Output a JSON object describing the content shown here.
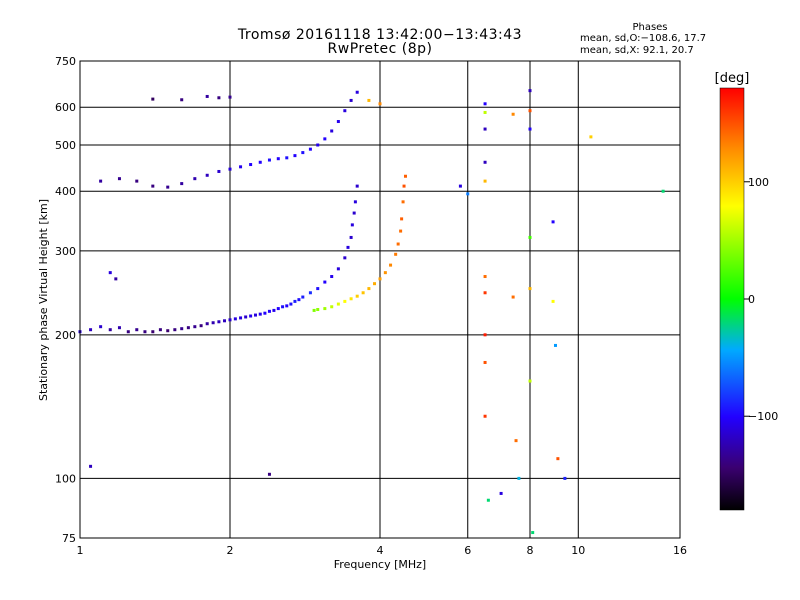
{
  "header": {
    "title_line1": "Tromsø 20161118 13:42:00−13:43:43",
    "title_line2": "RwPretec (8p)",
    "phases_title": "Phases",
    "phases_o": "mean, sd,O:−108.6, 17.7",
    "phases_x": "mean, sd,X:  92.1, 20.7"
  },
  "colorbar": {
    "unit": "[deg]",
    "ticks": [
      {
        "value": 100,
        "label": "100"
      },
      {
        "value": 0,
        "label": "0"
      },
      {
        "value": -100,
        "label": "−100"
      }
    ],
    "range": [
      -180,
      180
    ]
  },
  "chart_data": {
    "type": "scatter",
    "xlabel": "Frequency [MHz]",
    "ylabel": "Stationary phase Virtual Height [km]",
    "x_scale": "log",
    "y_scale": "log",
    "xlim": [
      1,
      16
    ],
    "ylim": [
      75,
      750
    ],
    "x_ticks": [
      {
        "value": 1,
        "label": "1"
      },
      {
        "value": 2,
        "label": "2"
      },
      {
        "value": 4,
        "label": "4"
      },
      {
        "value": 6,
        "label": "6"
      },
      {
        "value": 8,
        "label": "8"
      },
      {
        "value": 10,
        "label": "10"
      },
      {
        "value": 16,
        "label": "16"
      }
    ],
    "y_ticks": [
      {
        "value": 75,
        "label": "75"
      },
      {
        "value": 100,
        "label": "100"
      },
      {
        "value": 200,
        "label": "200"
      },
      {
        "value": 300,
        "label": "300"
      },
      {
        "value": 400,
        "label": "400"
      },
      {
        "value": 500,
        "label": "500"
      },
      {
        "value": 600,
        "label": "600"
      },
      {
        "value": 750,
        "label": "750"
      }
    ],
    "grid": true,
    "series": [
      {
        "trace": "o-mode F-layer",
        "points": [
          [
            1.0,
            203,
            -110
          ],
          [
            1.05,
            205,
            -120
          ],
          [
            1.1,
            208,
            -115
          ],
          [
            1.15,
            205,
            -130
          ],
          [
            1.2,
            207,
            -125
          ],
          [
            1.25,
            203,
            -140
          ],
          [
            1.3,
            205,
            -135
          ],
          [
            1.35,
            203,
            -140
          ],
          [
            1.4,
            203,
            -145
          ],
          [
            1.45,
            205,
            -140
          ],
          [
            1.5,
            204,
            -145
          ],
          [
            1.55,
            205,
            -140
          ],
          [
            1.6,
            206,
            -135
          ],
          [
            1.65,
            207,
            -140
          ],
          [
            1.7,
            208,
            -135
          ],
          [
            1.75,
            209,
            -140
          ],
          [
            1.8,
            211,
            -130
          ],
          [
            1.85,
            212,
            -125
          ],
          [
            1.9,
            213,
            -120
          ],
          [
            1.95,
            214,
            -120
          ],
          [
            2.0,
            215,
            -115
          ],
          [
            2.05,
            216,
            -110
          ],
          [
            2.1,
            217,
            -110
          ],
          [
            2.15,
            218,
            -115
          ],
          [
            2.2,
            219,
            -105
          ],
          [
            2.25,
            220,
            -110
          ],
          [
            2.3,
            221,
            -105
          ],
          [
            2.35,
            222,
            -100
          ],
          [
            2.4,
            224,
            -100
          ],
          [
            2.45,
            225,
            -105
          ],
          [
            2.5,
            227,
            -100
          ],
          [
            2.55,
            229,
            -95
          ],
          [
            2.6,
            230,
            -100
          ],
          [
            2.65,
            232,
            -95
          ],
          [
            2.7,
            235,
            -90
          ],
          [
            2.75,
            237,
            -95
          ],
          [
            2.8,
            240,
            -90
          ],
          [
            2.9,
            245,
            -85
          ],
          [
            3.0,
            250,
            -95
          ],
          [
            3.1,
            258,
            -100
          ],
          [
            3.2,
            265,
            -105
          ],
          [
            3.3,
            275,
            -110
          ],
          [
            3.4,
            290,
            -115
          ],
          [
            3.45,
            305,
            -110
          ],
          [
            3.5,
            320,
            -115
          ],
          [
            3.52,
            340,
            -110
          ],
          [
            3.55,
            360,
            -115
          ],
          [
            3.57,
            380,
            -110
          ],
          [
            3.6,
            410,
            -115
          ]
        ]
      },
      {
        "trace": "x-mode F-layer",
        "points": [
          [
            2.95,
            225,
            40
          ],
          [
            3.0,
            226,
            45
          ],
          [
            3.1,
            227,
            50
          ],
          [
            3.2,
            229,
            60
          ],
          [
            3.3,
            232,
            70
          ],
          [
            3.4,
            235,
            80
          ],
          [
            3.5,
            238,
            90
          ],
          [
            3.6,
            241,
            100
          ],
          [
            3.7,
            245,
            105
          ],
          [
            3.8,
            250,
            110
          ],
          [
            3.9,
            256,
            115
          ],
          [
            4.0,
            262,
            120
          ],
          [
            4.1,
            270,
            125
          ],
          [
            4.2,
            280,
            130
          ],
          [
            4.3,
            295,
            135
          ],
          [
            4.35,
            310,
            140
          ],
          [
            4.4,
            330,
            140
          ],
          [
            4.42,
            350,
            145
          ],
          [
            4.45,
            380,
            140
          ],
          [
            4.47,
            410,
            150
          ],
          [
            4.5,
            430,
            145
          ]
        ]
      },
      {
        "trace": "o-mode multi-hop",
        "points": [
          [
            1.1,
            420,
            -130
          ],
          [
            1.2,
            425,
            -135
          ],
          [
            1.3,
            420,
            -140
          ],
          [
            1.4,
            410,
            -140
          ],
          [
            1.5,
            408,
            -135
          ],
          [
            1.6,
            415,
            -130
          ],
          [
            1.7,
            425,
            -125
          ],
          [
            1.8,
            432,
            -120
          ],
          [
            1.9,
            440,
            -115
          ],
          [
            2.0,
            445,
            -110
          ],
          [
            2.1,
            450,
            -105
          ],
          [
            2.2,
            455,
            -100
          ],
          [
            2.3,
            460,
            -100
          ],
          [
            2.4,
            465,
            -95
          ],
          [
            2.5,
            468,
            -100
          ],
          [
            2.6,
            470,
            -95
          ],
          [
            2.7,
            475,
            -100
          ],
          [
            2.8,
            482,
            -95
          ],
          [
            2.9,
            490,
            -100
          ],
          [
            3.0,
            500,
            -105
          ],
          [
            3.1,
            515,
            -100
          ],
          [
            3.2,
            535,
            -110
          ],
          [
            3.3,
            560,
            -105
          ],
          [
            3.4,
            590,
            -110
          ],
          [
            3.5,
            620,
            -115
          ],
          [
            3.6,
            645,
            -110
          ]
        ]
      },
      {
        "trace": "scattered echoes",
        "points": [
          [
            1.05,
            106,
            -120
          ],
          [
            1.15,
            270,
            -110
          ],
          [
            1.18,
            262,
            -130
          ],
          [
            1.4,
            624,
            -150
          ],
          [
            1.6,
            622,
            -140
          ],
          [
            1.8,
            632,
            -130
          ],
          [
            1.9,
            628,
            -140
          ],
          [
            2.0,
            630,
            -135
          ],
          [
            2.4,
            102,
            -140
          ],
          [
            5.8,
            410,
            -110
          ],
          [
            6.0,
            395,
            -60
          ],
          [
            6.5,
            610,
            -100
          ],
          [
            6.5,
            585,
            60
          ],
          [
            6.5,
            540,
            -120
          ],
          [
            6.5,
            460,
            -120
          ],
          [
            6.5,
            420,
            110
          ],
          [
            6.5,
            265,
            140
          ],
          [
            6.5,
            245,
            160
          ],
          [
            6.5,
            200,
            170
          ],
          [
            6.5,
            175,
            150
          ],
          [
            6.5,
            135,
            160
          ],
          [
            6.6,
            90,
            -20
          ],
          [
            7.0,
            93,
            -110
          ],
          [
            7.4,
            580,
            130
          ],
          [
            7.4,
            240,
            140
          ],
          [
            7.5,
            120,
            140
          ],
          [
            7.6,
            100,
            -40
          ],
          [
            8.0,
            650,
            -120
          ],
          [
            8.0,
            590,
            150
          ],
          [
            8.0,
            540,
            -100
          ],
          [
            8.0,
            320,
            20
          ],
          [
            8.0,
            250,
            110
          ],
          [
            8.0,
            160,
            60
          ],
          [
            8.1,
            77,
            -20
          ],
          [
            8.9,
            235,
            80
          ],
          [
            8.9,
            345,
            -100
          ],
          [
            9.0,
            190,
            -50
          ],
          [
            9.1,
            110,
            150
          ],
          [
            9.4,
            100,
            -90
          ],
          [
            10.6,
            520,
            100
          ],
          [
            14.8,
            400,
            -20
          ],
          [
            3.8,
            620,
            110
          ],
          [
            4.0,
            610,
            130
          ]
        ]
      }
    ]
  }
}
